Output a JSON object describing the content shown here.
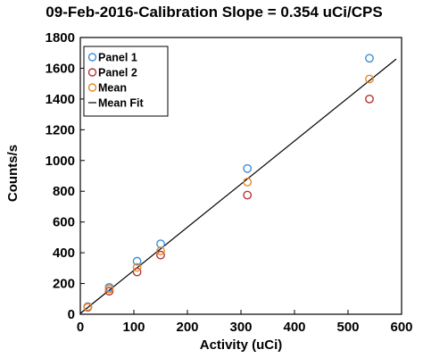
{
  "chart_data": {
    "type": "scatter",
    "title": "09-Feb-2016-Calibration Slope = 0.354 uCi/CPS",
    "xlabel": "Activity (uCi)",
    "ylabel": "Counts/s",
    "xlim": [
      0,
      600
    ],
    "ylim": [
      0,
      1800
    ],
    "x_ticks": [
      0,
      100,
      200,
      300,
      400,
      500,
      600
    ],
    "y_ticks": [
      0,
      200,
      400,
      600,
      800,
      1000,
      1200,
      1400,
      1600,
      1800
    ],
    "grid": false,
    "legend_position": "top-left",
    "series": [
      {
        "name": "Panel 1",
        "marker": "circle",
        "color": "#3a8fd6",
        "points": [
          [
            14,
            50
          ],
          [
            54,
            175
          ],
          [
            106,
            345
          ],
          [
            150,
            458
          ],
          [
            312,
            948
          ],
          [
            540,
            1665
          ]
        ]
      },
      {
        "name": "Panel 2",
        "marker": "circle",
        "color": "#b83232",
        "points": [
          [
            14,
            45
          ],
          [
            54,
            150
          ],
          [
            106,
            275
          ],
          [
            150,
            385
          ],
          [
            312,
            775
          ],
          [
            540,
            1400
          ]
        ]
      },
      {
        "name": "Mean",
        "marker": "circle",
        "color": "#e38a2c",
        "points": [
          [
            14,
            48
          ],
          [
            54,
            165
          ],
          [
            106,
            305
          ],
          [
            150,
            412
          ],
          [
            312,
            860
          ],
          [
            540,
            1530
          ]
        ]
      },
      {
        "name": "Mean Fit",
        "type": "line",
        "color": "#000000",
        "points": [
          [
            0,
            5
          ],
          [
            590,
            1660
          ]
        ]
      }
    ]
  }
}
